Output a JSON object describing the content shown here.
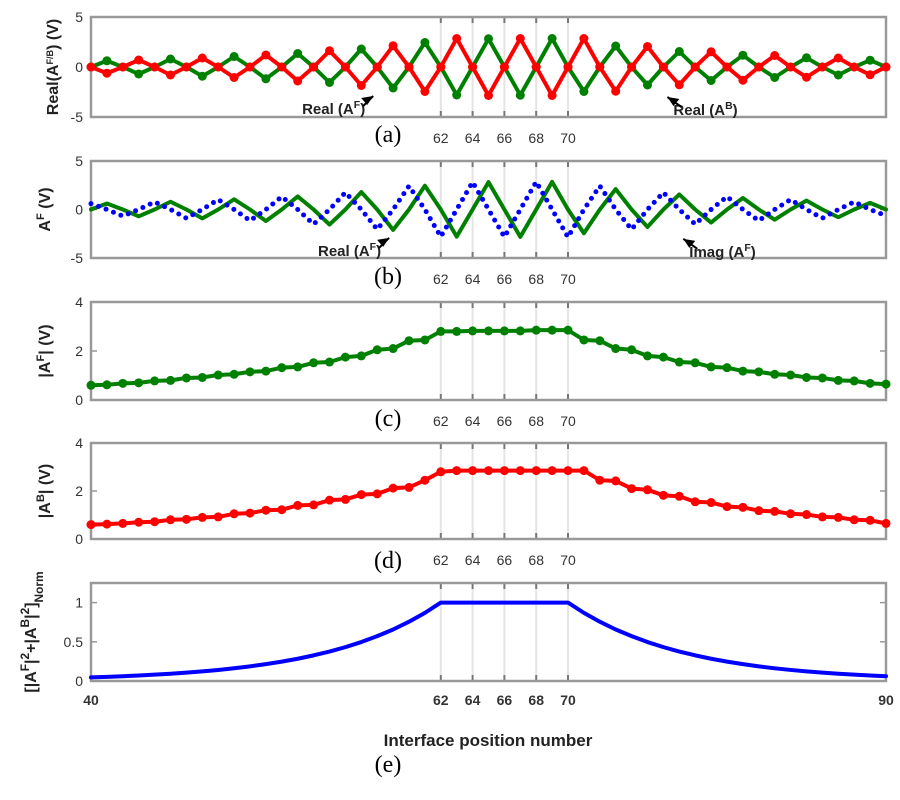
{
  "chart_data": {
    "type": "line",
    "x": [
      40,
      41,
      42,
      43,
      44,
      45,
      46,
      47,
      48,
      49,
      50,
      51,
      52,
      53,
      54,
      55,
      56,
      57,
      58,
      59,
      60,
      61,
      62,
      63,
      64,
      65,
      66,
      67,
      68,
      69,
      70,
      71,
      72,
      73,
      74,
      75,
      76,
      77,
      78,
      79,
      80,
      81,
      82,
      83,
      84,
      85,
      86,
      87,
      88,
      89,
      90
    ],
    "xlabel": "Interface position number",
    "xlim": [
      40,
      90
    ],
    "highlight_ticks": [
      "62",
      "64",
      "66",
      "68",
      "70"
    ],
    "panels": [
      {
        "id": "a",
        "label": "(a)",
        "ylabel_parts": [
          {
            "t": "Real(A",
            "p": "base"
          },
          {
            "t": "F/B",
            "p": "sup"
          },
          {
            "t": ") (V)",
            "p": "base"
          }
        ],
        "ylim": [
          -5,
          5
        ],
        "yticks": [
          "-5",
          "0",
          "5"
        ],
        "series": [
          {
            "name": "Real(A^F)",
            "color": "#008000",
            "style": "solid-markers",
            "values": [
              0,
              0.62,
              0,
              -0.7,
              0,
              0.8,
              0,
              -0.92,
              0,
              1.05,
              0,
              -1.18,
              0,
              1.35,
              0,
              -1.55,
              0,
              1.8,
              0,
              -2.1,
              0,
              2.45,
              0,
              -2.8,
              0,
              2.82,
              0,
              -2.82,
              0,
              2.85,
              0,
              -2.45,
              0,
              2.1,
              0,
              -1.8,
              0,
              1.55,
              0,
              -1.35,
              0,
              1.18,
              0,
              -1.05,
              0,
              0.92,
              0,
              -0.8,
              0,
              0.68,
              0
            ]
          },
          {
            "name": "Real(A^B)",
            "color": "#ff0000",
            "style": "solid-markers",
            "values": [
              0,
              -0.62,
              0,
              0.7,
              0,
              -0.8,
              0,
              0.9,
              0,
              -1.05,
              0,
              1.2,
              0,
              -1.4,
              0,
              1.62,
              0,
              -1.85,
              0,
              2.12,
              0,
              -2.45,
              0,
              2.85,
              0,
              -2.85,
              0,
              2.85,
              0,
              -2.85,
              0,
              2.85,
              0,
              -2.42,
              0,
              2.05,
              0,
              -1.78,
              0,
              1.52,
              0,
              -1.32,
              0,
              1.15,
              0,
              -1.02,
              0,
              0.9,
              0,
              -0.78,
              0
            ]
          }
        ],
        "annotations": [
          {
            "parts": [
              {
                "t": "Real (A",
                "p": "base"
              },
              {
                "t": "F",
                "p": "sup"
              },
              {
                "t": ")",
                "p": "base"
              }
            ],
            "x": 58,
            "y": -2.1
          },
          {
            "parts": [
              {
                "t": "Real (A",
                "p": "base"
              },
              {
                "t": "B",
                "p": "sup"
              },
              {
                "t": ")",
                "p": "base"
              }
            ],
            "x": 76,
            "y": -2.2
          }
        ]
      },
      {
        "id": "b",
        "label": "(b)",
        "ylabel_parts": [
          {
            "t": "A",
            "p": "base"
          },
          {
            "t": "F",
            "p": "sup"
          },
          {
            "t": " (V)",
            "p": "base"
          }
        ],
        "ylim": [
          -5,
          5
        ],
        "yticks": [
          "-5",
          "0",
          "5"
        ],
        "series": [
          {
            "name": "Real(A^F)",
            "color": "#008000",
            "style": "solid",
            "values": [
              0,
              0.62,
              0,
              -0.7,
              0,
              0.8,
              0,
              -0.92,
              0,
              1.05,
              0,
              -1.18,
              0,
              1.35,
              0,
              -1.55,
              0,
              1.8,
              0,
              -2.1,
              0,
              2.45,
              0,
              -2.8,
              0,
              2.82,
              0,
              -2.82,
              0,
              2.85,
              0,
              -2.45,
              0,
              2.1,
              0,
              -1.8,
              0,
              1.55,
              0,
              -1.35,
              0,
              1.18,
              0,
              -1.05,
              0,
              0.92,
              0,
              -0.8,
              0,
              0.68,
              0
            ]
          },
          {
            "name": "Imag(A^F)",
            "color": "#0000ff",
            "style": "dotted",
            "values": [
              0.6,
              0,
              -0.68,
              0,
              0.78,
              0,
              -0.9,
              0,
              1.02,
              0,
              -1.15,
              0,
              1.32,
              0,
              -1.52,
              0,
              1.75,
              0,
              -2.05,
              0,
              2.42,
              0,
              -2.8,
              0,
              2.82,
              0,
              -2.82,
              0,
              2.85,
              0,
              -2.85,
              0,
              2.42,
              0,
              -2.05,
              0,
              1.75,
              0,
              -1.52,
              0,
              1.32,
              0,
              -1.15,
              0,
              1.02,
              0,
              -0.9,
              0,
              0.78,
              0,
              -0.65
            ]
          }
        ],
        "annotations": [
          {
            "parts": [
              {
                "t": "Real (A",
                "p": "base"
              },
              {
                "t": "F",
                "p": "sup"
              },
              {
                "t": ")",
                "p": "base"
              }
            ],
            "x": 59,
            "y": -2.1
          },
          {
            "parts": [
              {
                "t": "Imag (A",
                "p": "base"
              },
              {
                "t": "F",
                "p": "sup"
              },
              {
                "t": ")",
                "p": "base"
              }
            ],
            "x": 77,
            "y": -2.2
          }
        ]
      },
      {
        "id": "c",
        "label": "(c)",
        "ylabel_parts": [
          {
            "t": "|A",
            "p": "base"
          },
          {
            "t": "F",
            "p": "sup"
          },
          {
            "t": "| (V)",
            "p": "base"
          }
        ],
        "ylim": [
          0,
          4
        ],
        "yticks": [
          "0",
          "2",
          "4"
        ],
        "series": [
          {
            "name": "|A^F|",
            "color": "#008000",
            "style": "solid-markers",
            "values": [
              0.6,
              0.62,
              0.68,
              0.7,
              0.78,
              0.8,
              0.9,
              0.92,
              1.02,
              1.05,
              1.15,
              1.18,
              1.32,
              1.35,
              1.52,
              1.55,
              1.75,
              1.8,
              2.05,
              2.1,
              2.42,
              2.45,
              2.8,
              2.8,
              2.82,
              2.82,
              2.82,
              2.82,
              2.85,
              2.85,
              2.85,
              2.45,
              2.42,
              2.1,
              2.05,
              1.8,
              1.75,
              1.55,
              1.52,
              1.35,
              1.32,
              1.18,
              1.15,
              1.05,
              1.02,
              0.92,
              0.9,
              0.8,
              0.78,
              0.68,
              0.65
            ]
          }
        ],
        "annotations": []
      },
      {
        "id": "d",
        "label": "(d)",
        "ylabel_parts": [
          {
            "t": "|A",
            "p": "base"
          },
          {
            "t": "B",
            "p": "sup"
          },
          {
            "t": "| (V)",
            "p": "base"
          }
        ],
        "ylim": [
          0,
          4
        ],
        "yticks": [
          "0",
          "2",
          "4"
        ],
        "series": [
          {
            "name": "|A^B|",
            "color": "#ff0000",
            "style": "solid-markers",
            "values": [
              0.6,
              0.62,
              0.65,
              0.7,
              0.72,
              0.8,
              0.82,
              0.9,
              0.92,
              1.05,
              1.08,
              1.2,
              1.22,
              1.4,
              1.42,
              1.62,
              1.65,
              1.85,
              1.88,
              2.12,
              2.15,
              2.45,
              2.8,
              2.85,
              2.85,
              2.85,
              2.85,
              2.85,
              2.85,
              2.85,
              2.85,
              2.85,
              2.45,
              2.42,
              2.1,
              2.05,
              1.82,
              1.78,
              1.55,
              1.52,
              1.35,
              1.32,
              1.18,
              1.15,
              1.05,
              1.02,
              0.92,
              0.9,
              0.8,
              0.78,
              0.65
            ]
          }
        ],
        "annotations": []
      },
      {
        "id": "e",
        "label": "(e)",
        "ylabel_parts": [
          {
            "t": "[|A",
            "p": "base"
          },
          {
            "t": "F",
            "p": "sup"
          },
          {
            "t": "|",
            "p": "base"
          },
          {
            "t": "2",
            "p": "sup"
          },
          {
            "t": "+|A",
            "p": "base"
          },
          {
            "t": "B",
            "p": "sup"
          },
          {
            "t": "|",
            "p": "base"
          },
          {
            "t": "2",
            "p": "sup"
          },
          {
            "t": "]",
            "p": "base"
          },
          {
            "t": "Norm",
            "p": "sub"
          }
        ],
        "ylim": [
          0,
          1.25
        ],
        "yticks": [
          "0",
          "0.5",
          "1"
        ],
        "xticks": [
          "40",
          "62",
          "64",
          "66",
          "68",
          "70",
          "90"
        ],
        "series": [
          {
            "name": "Normalized |A^F|^2+|A^B|^2",
            "color": "#0000ff",
            "style": "solid",
            "values": [
              0.046,
              0.053,
              0.061,
              0.07,
              0.081,
              0.093,
              0.107,
              0.123,
              0.141,
              0.162,
              0.187,
              0.215,
              0.247,
              0.284,
              0.327,
              0.376,
              0.432,
              0.497,
              0.572,
              0.657,
              0.756,
              0.869,
              1,
              1,
              1,
              1,
              1,
              1,
              1,
              1,
              1,
              0.869,
              0.756,
              0.657,
              0.572,
              0.497,
              0.432,
              0.376,
              0.327,
              0.284,
              0.247,
              0.215,
              0.187,
              0.162,
              0.141,
              0.123,
              0.107,
              0.093,
              0.081,
              0.07,
              0.061
            ]
          }
        ],
        "annotations": []
      }
    ]
  }
}
